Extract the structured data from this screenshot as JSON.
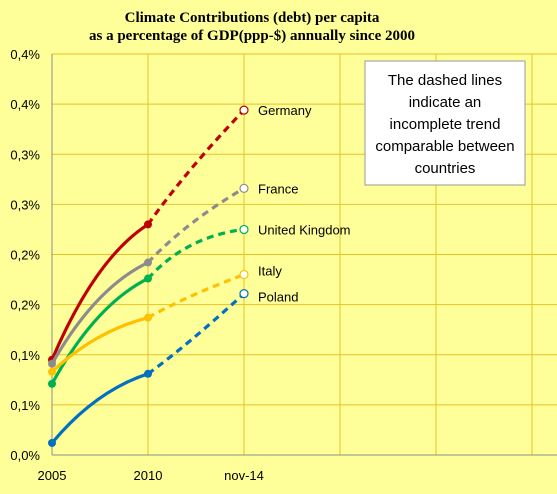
{
  "chart_data": {
    "type": "line",
    "title": "Climate Contributions (debt)  per capita",
    "subtitle": "as a percentage of GDP(ppp-$) annually since 2000",
    "categories": [
      "2005",
      "2010",
      "nov-14"
    ],
    "y_tick_labels": [
      "0,0%",
      "0,1%",
      "0,1%",
      "0,2%",
      "0,2%",
      "0,3%",
      "0,3%",
      "0,4%",
      "0,4%"
    ],
    "ylim": [
      0,
      0.4
    ],
    "grid": true,
    "annotation": "The dashed lines indicate an incomplete trend comparable between countries",
    "series": [
      {
        "name": "Germany",
        "values": [
          0.095,
          0.23,
          0.344
        ],
        "color": "#c00000"
      },
      {
        "name": "France",
        "values": [
          0.091,
          0.192,
          0.266
        ],
        "color": "#8c8c8c"
      },
      {
        "name": "United Kingdom",
        "values": [
          0.071,
          0.176,
          0.225
        ],
        "color": "#00b050"
      },
      {
        "name": "Italy",
        "values": [
          0.083,
          0.137,
          0.18
        ],
        "color": "#ffc000"
      },
      {
        "name": "Poland",
        "values": [
          0.012,
          0.081,
          0.161
        ],
        "color": "#0070c0"
      }
    ]
  }
}
